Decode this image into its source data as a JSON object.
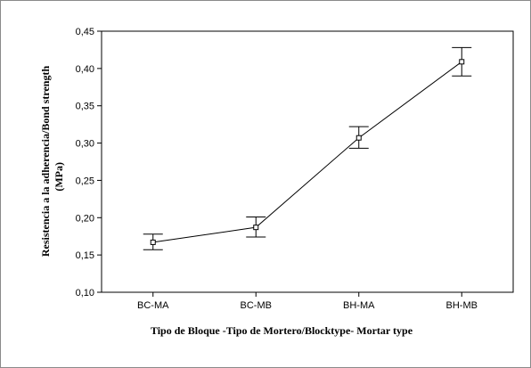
{
  "chart_data": {
    "type": "line",
    "title": "",
    "xlabel": "Tipo de Bloque -Tipo de Mortero/Blocktype- Mortar type",
    "ylabel_line1": "Resistencia a la adherencia/Bond strength",
    "ylabel_line2": "(MPa)",
    "categories": [
      "BC-MA",
      "BC-MB",
      "BH-MA",
      "BH-MB"
    ],
    "series": [
      {
        "values": [
          0.167,
          0.187,
          0.307,
          0.409
        ],
        "error_low": [
          0.157,
          0.174,
          0.293,
          0.39
        ],
        "error_high": [
          0.178,
          0.201,
          0.322,
          0.428
        ]
      }
    ],
    "ylim": [
      0.1,
      0.45
    ],
    "yticks": [
      0.1,
      0.15,
      0.2,
      0.25,
      0.3,
      0.35,
      0.4,
      0.45
    ],
    "ytick_labels": [
      "0,10",
      "0,15",
      "0,20",
      "0,25",
      "0,30",
      "0,35",
      "0,40",
      "0,45"
    ],
    "grid": false,
    "legend": "none",
    "line_color": "#000000",
    "marker": "open-square"
  }
}
